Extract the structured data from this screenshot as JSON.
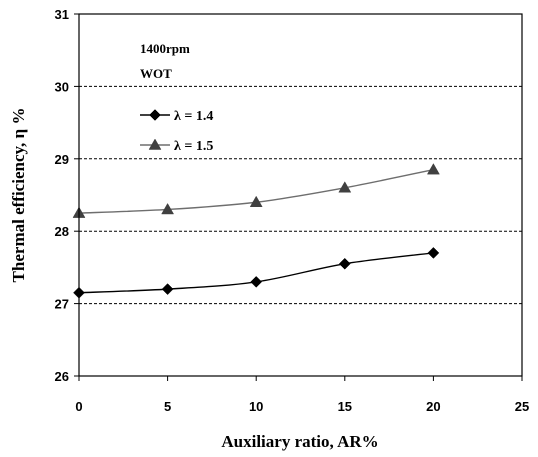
{
  "chart_data": {
    "type": "line",
    "title": "",
    "xlabel": "Auxiliary ratio, AR%",
    "ylabel": "Thermal efficiency,  η %",
    "xlim": [
      0,
      25
    ],
    "ylim": [
      26,
      31
    ],
    "x_ticks": [
      0,
      5,
      10,
      15,
      20,
      25
    ],
    "y_ticks": [
      26,
      27,
      28,
      29,
      30,
      31
    ],
    "x_tick_labels": [
      "0",
      "5",
      "10",
      "15",
      "20",
      "25"
    ],
    "y_tick_labels": [
      "26",
      "27",
      "28",
      "29",
      "30",
      "31"
    ],
    "grid": "horizontal dashed",
    "legend_position": "top-left",
    "annotations": [
      "1400rpm",
      "WOT"
    ],
    "series": [
      {
        "name": "λ = 1.4",
        "marker": "diamond",
        "color": "#000000",
        "line_color": "#000000",
        "x": [
          0,
          5,
          10,
          15,
          20
        ],
        "values": [
          27.15,
          27.2,
          27.3,
          27.55,
          27.7
        ]
      },
      {
        "name": "λ = 1.5",
        "marker": "triangle",
        "color": "#404040",
        "line_color": "#6e6e6e",
        "x": [
          0,
          5,
          10,
          15,
          20
        ],
        "values": [
          28.25,
          28.3,
          28.4,
          28.6,
          28.85
        ]
      }
    ]
  }
}
